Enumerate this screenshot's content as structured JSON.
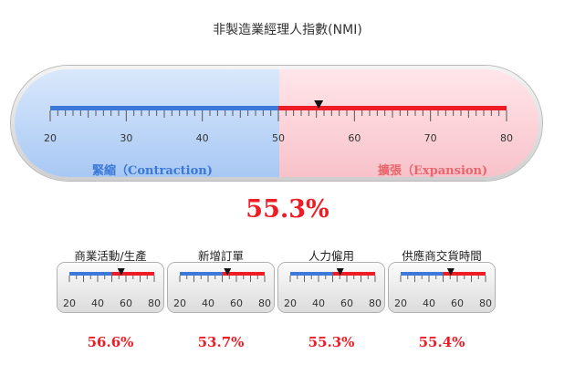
{
  "title": "非製造業經理人指數(NMI)",
  "main_gauge": {
    "min": 20,
    "max": 80,
    "midpoint": 50,
    "ticks": [
      "20",
      "30",
      "40",
      "50",
      "60",
      "70",
      "80"
    ],
    "value": 55.3,
    "left_label": "緊縮（Contraction)",
    "right_label": "擴張（Expansion)",
    "value_text": "55.3%",
    "colors": {
      "blue": "#3b78d8",
      "red": "#ee1c25"
    }
  },
  "sub_gauges": [
    {
      "label": "商業活動/生產",
      "value": 56.6,
      "value_text": "56.6%",
      "ticks": [
        "20",
        "40",
        "60",
        "80"
      ]
    },
    {
      "label": "新增訂單",
      "value": 53.7,
      "value_text": "53.7%",
      "ticks": [
        "20",
        "40",
        "60",
        "80"
      ]
    },
    {
      "label": "人力僱用",
      "value": 55.3,
      "value_text": "55.3%",
      "ticks": [
        "20",
        "40",
        "60",
        "80"
      ]
    },
    {
      "label": "供應商交貨時間",
      "value": 55.4,
      "value_text": "55.4%",
      "ticks": [
        "20",
        "40",
        "60",
        "80"
      ]
    }
  ]
}
